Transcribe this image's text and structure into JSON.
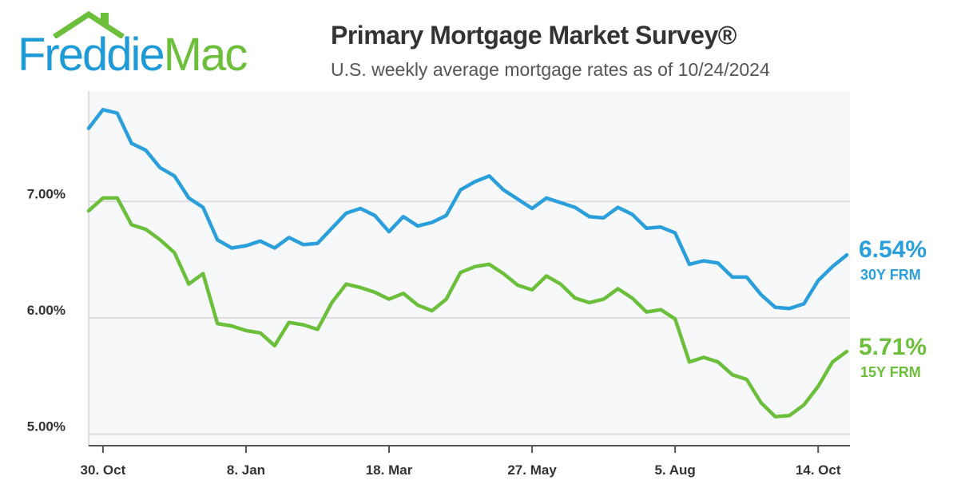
{
  "header": {
    "logo_text_left": "Freddie",
    "logo_text_right": "Mac",
    "title": "Primary Mortgage Market Survey®",
    "subtitle": "U.S. weekly average mortgage rates as of 10/24/2024"
  },
  "colors": {
    "series_30y": "#2b9fdc",
    "series_15y": "#6cbf3a",
    "plot_background": "#f7f8fa",
    "grid": "#dcdcdc",
    "axis": "#555555"
  },
  "chart_data": {
    "type": "line",
    "title": "Primary Mortgage Market Survey®",
    "subtitle": "U.S. weekly average mortgage rates as of 10/24/2024",
    "xlabel": "",
    "ylabel": "",
    "ylim": [
      4.9,
      7.95
    ],
    "yticks": [
      5.0,
      6.0,
      7.0
    ],
    "ytick_labels": [
      "5.00%",
      "6.00%",
      "7.00%"
    ],
    "xtick_labels": [
      "30. Oct",
      "8. Jan",
      "18. Mar",
      "27. May",
      "5. Aug",
      "14. Oct"
    ],
    "xtick_weeks": [
      1,
      11,
      21,
      31,
      41,
      51
    ],
    "grid": true,
    "legend": "end-labels at right",
    "x_weeks": [
      0,
      1,
      2,
      3,
      4,
      5,
      6,
      7,
      8,
      9,
      10,
      11,
      12,
      13,
      14,
      15,
      16,
      17,
      18,
      19,
      20,
      21,
      22,
      23,
      24,
      25,
      26,
      27,
      28,
      29,
      30,
      31,
      32,
      33,
      34,
      35,
      36,
      37,
      38,
      39,
      40,
      41,
      42,
      43,
      44,
      45,
      46,
      47,
      48,
      49,
      50,
      51,
      52,
      53
    ],
    "series": [
      {
        "name": "30Y FRM",
        "end_value_label": "6.54%",
        "values": [
          7.63,
          7.79,
          7.76,
          7.5,
          7.44,
          7.29,
          7.22,
          7.03,
          6.95,
          6.67,
          6.6,
          6.62,
          6.66,
          6.6,
          6.69,
          6.63,
          6.64,
          6.77,
          6.9,
          6.94,
          6.88,
          6.74,
          6.87,
          6.79,
          6.82,
          6.88,
          7.1,
          7.17,
          7.22,
          7.1,
          7.02,
          6.94,
          7.03,
          6.99,
          6.95,
          6.87,
          6.86,
          6.95,
          6.89,
          6.77,
          6.78,
          6.73,
          6.46,
          6.49,
          6.47,
          6.35,
          6.35,
          6.2,
          6.09,
          6.08,
          6.12,
          6.32,
          6.44,
          6.54
        ]
      },
      {
        "name": "15Y FRM",
        "end_value_label": "5.71%",
        "values": [
          6.92,
          7.03,
          7.03,
          6.8,
          6.76,
          6.67,
          6.56,
          6.29,
          6.38,
          5.95,
          5.93,
          5.89,
          5.87,
          5.76,
          5.96,
          5.94,
          5.9,
          6.13,
          6.29,
          6.26,
          6.22,
          6.16,
          6.21,
          6.11,
          6.06,
          6.16,
          6.39,
          6.44,
          6.46,
          6.38,
          6.28,
          6.24,
          6.36,
          6.29,
          6.17,
          6.13,
          6.16,
          6.25,
          6.17,
          6.05,
          6.07,
          5.99,
          5.62,
          5.66,
          5.62,
          5.51,
          5.47,
          5.27,
          5.15,
          5.16,
          5.25,
          5.41,
          5.62,
          5.71
        ]
      }
    ]
  }
}
